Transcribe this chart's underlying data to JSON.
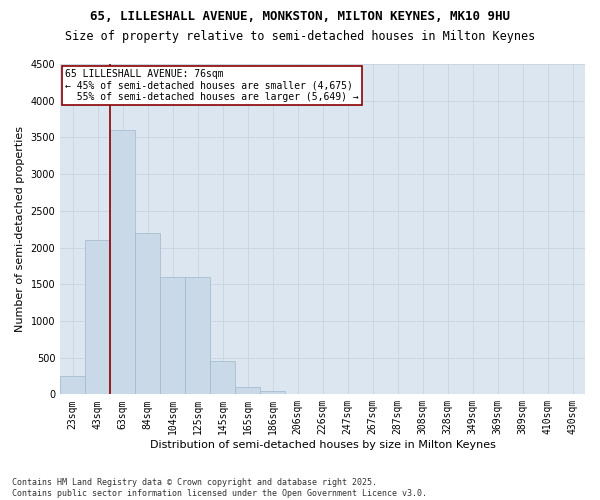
{
  "title_line1": "65, LILLESHALL AVENUE, MONKSTON, MILTON KEYNES, MK10 9HU",
  "title_line2": "Size of property relative to semi-detached houses in Milton Keynes",
  "xlabel": "Distribution of semi-detached houses by size in Milton Keynes",
  "ylabel": "Number of semi-detached properties",
  "categories": [
    "23sqm",
    "43sqm",
    "63sqm",
    "84sqm",
    "104sqm",
    "125sqm",
    "145sqm",
    "165sqm",
    "186sqm",
    "206sqm",
    "226sqm",
    "247sqm",
    "267sqm",
    "287sqm",
    "308sqm",
    "328sqm",
    "349sqm",
    "369sqm",
    "389sqm",
    "410sqm",
    "430sqm"
  ],
  "values": [
    250,
    2100,
    3600,
    2200,
    1600,
    1600,
    450,
    100,
    50,
    0,
    0,
    0,
    0,
    0,
    0,
    0,
    0,
    0,
    0,
    0,
    0
  ],
  "bar_color": "#c9d9e8",
  "bar_edge_color": "#a0b8cc",
  "grid_color": "#c8d4e0",
  "bg_color": "#dce6f0",
  "annotation_line1": "65 LILLESHALL AVENUE: 76sqm",
  "annotation_line2": "← 45% of semi-detached houses are smaller (4,675)",
  "annotation_line3": "  55% of semi-detached houses are larger (5,649) →",
  "vline_color": "#8b0000",
  "annotation_box_color": "#8b0000",
  "ylim": [
    0,
    4500
  ],
  "yticks": [
    0,
    500,
    1000,
    1500,
    2000,
    2500,
    3000,
    3500,
    4000,
    4500
  ],
  "footer": "Contains HM Land Registry data © Crown copyright and database right 2025.\nContains public sector information licensed under the Open Government Licence v3.0.",
  "title_fontsize": 9,
  "subtitle_fontsize": 8.5,
  "tick_fontsize": 7,
  "label_fontsize": 8,
  "annotation_fontsize": 7,
  "footer_fontsize": 6
}
